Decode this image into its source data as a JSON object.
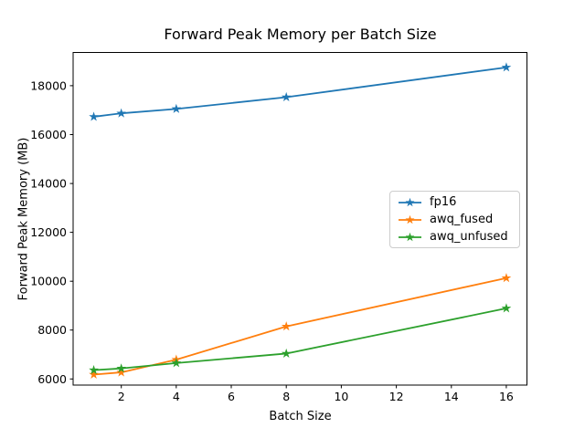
{
  "figure": {
    "title": "Forward Peak Memory per Batch Size",
    "xlabel": "Batch Size",
    "ylabel": "Forward Peak Memory (MB)"
  },
  "chart_data": {
    "type": "line",
    "title": "Forward Peak Memory per Batch Size",
    "xlabel": "Batch Size",
    "ylabel": "Forward Peak Memory (MB)",
    "x": [
      1,
      2,
      4,
      8,
      16
    ],
    "series": [
      {
        "name": "fp16",
        "color": "#1f77b4",
        "marker": "star",
        "values": [
          16730,
          16870,
          17050,
          17530,
          18750
        ]
      },
      {
        "name": "awq_fused",
        "color": "#ff7f0e",
        "marker": "star",
        "values": [
          6180,
          6270,
          6790,
          8150,
          10130
        ]
      },
      {
        "name": "awq_unfused",
        "color": "#2ca02c",
        "marker": "star",
        "values": [
          6360,
          6430,
          6650,
          7040,
          8890
        ]
      }
    ],
    "x_ticks": [
      2,
      4,
      6,
      8,
      10,
      12,
      14,
      16
    ],
    "y_ticks": [
      6000,
      8000,
      10000,
      12000,
      14000,
      16000,
      18000
    ],
    "xlim": [
      0.25,
      16.75
    ],
    "ylim": [
      5750,
      19360
    ],
    "grid": false,
    "legend_position": "center-right",
    "axis_color": "#000000",
    "background_color": "#ffffff"
  }
}
